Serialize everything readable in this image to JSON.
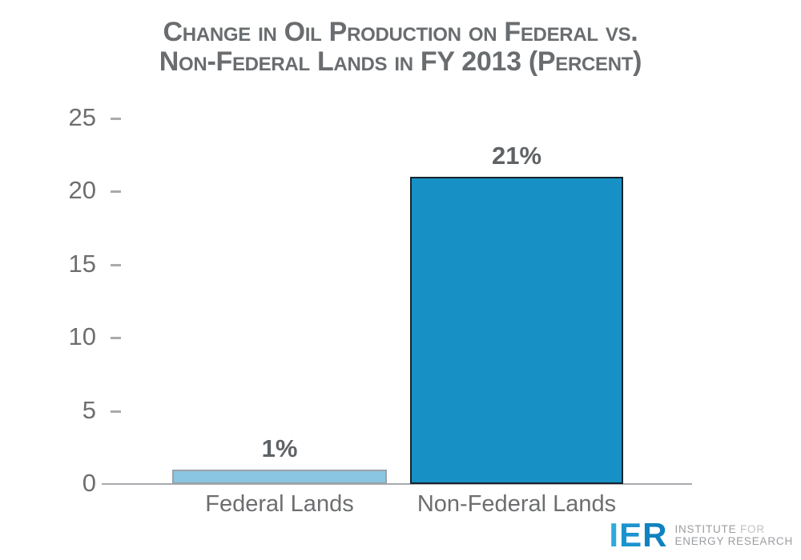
{
  "title": {
    "line1": "Change in Oil Production on Federal vs.",
    "line2": "Non-Federal Lands in FY 2013 (Percent)"
  },
  "chart_data": {
    "type": "bar",
    "title": "Change in Oil Production on Federal vs. Non-Federal Lands in FY 2013 (Percent)",
    "categories": [
      "Federal Lands",
      "Non-Federal Lands"
    ],
    "values": [
      1,
      21
    ],
    "value_labels": [
      "1%",
      "21%"
    ],
    "ylim": [
      0,
      25
    ],
    "yticks": [
      0,
      5,
      10,
      15,
      20,
      25
    ],
    "grid": false,
    "legend": "none",
    "xlabel": "",
    "ylabel": "",
    "bar_fill_colors": [
      "#8ac6e2",
      "#1791c5"
    ],
    "bar_border_colors": [
      "#9aa2a7",
      "#15242c"
    ]
  },
  "logo": {
    "letters": [
      {
        "char": "I",
        "color": "#2fa9de"
      },
      {
        "char": "E",
        "color": "#1b93ce"
      },
      {
        "char": "R",
        "color": "#0f82c0"
      }
    ],
    "tagline_line1_strong": "INSTITUTE",
    "tagline_line1_light": "FOR",
    "tagline_line2": "ENERGY RESEARCH"
  },
  "colors": {
    "title_text": "#6a6d6f",
    "axis_text": "#6d6e70",
    "axis_line": "#a8aaad",
    "value_label_text": "#606366",
    "logo_text_strong": "#9b9da0",
    "logo_text_light": "#bfc1c3"
  }
}
